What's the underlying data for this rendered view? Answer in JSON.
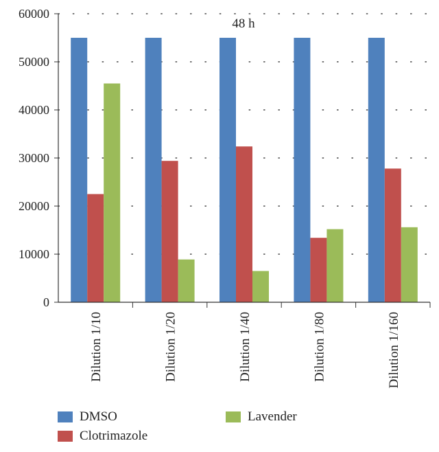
{
  "chart_data": {
    "type": "bar",
    "title": "48 h",
    "xlabel": "",
    "ylabel": "",
    "categories": [
      "Dilution 1/10",
      "Dilution 1/20",
      "Dilution 1/40",
      "Dilution 1/80",
      "Dilution 1/160"
    ],
    "series": [
      {
        "name": "DMSO",
        "color": "#4f81bd",
        "values": [
          55000,
          55000,
          55000,
          55000,
          55000
        ]
      },
      {
        "name": "Clotrimazole",
        "color": "#c0504d",
        "values": [
          22500,
          29400,
          32400,
          13400,
          27800
        ]
      },
      {
        "name": "Lavender",
        "color": "#9bbb59",
        "values": [
          45500,
          8900,
          6500,
          15200,
          15600
        ]
      }
    ],
    "ylim": [
      0,
      60000
    ],
    "yticks": [
      0,
      10000,
      20000,
      30000,
      40000,
      50000,
      60000
    ],
    "grid": true,
    "legend_position": "bottom"
  }
}
